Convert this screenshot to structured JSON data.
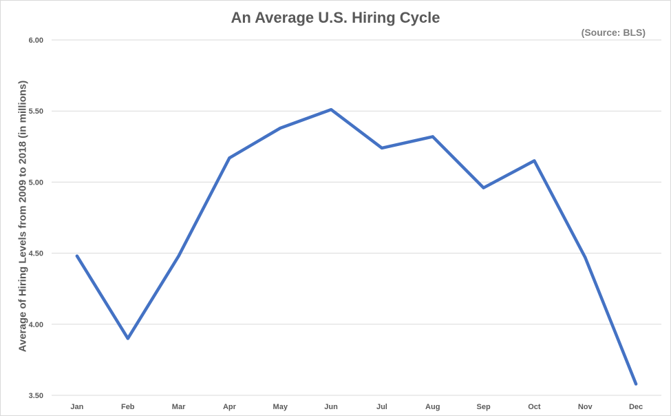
{
  "chart_data": {
    "type": "line",
    "title": "An Average U.S. Hiring Cycle",
    "subtitle": "(Source: BLS)",
    "xlabel": "",
    "ylabel": "Average of Hiring Levels from 2009 to 2018 (in millions)",
    "categories": [
      "Jan",
      "Feb",
      "Mar",
      "Apr",
      "May",
      "Jun",
      "Jul",
      "Aug",
      "Sep",
      "Oct",
      "Nov",
      "Dec"
    ],
    "series": [
      {
        "values": [
          4.48,
          3.9,
          4.48,
          5.17,
          5.38,
          5.51,
          5.24,
          5.32,
          4.96,
          5.15,
          4.47,
          3.58
        ],
        "color": "#4472c4"
      }
    ],
    "ylim": [
      3.5,
      6.0
    ],
    "yticks": [
      "3.50",
      "4.00",
      "4.50",
      "5.00",
      "5.50",
      "6.00"
    ],
    "grid": true,
    "legend": "none"
  }
}
